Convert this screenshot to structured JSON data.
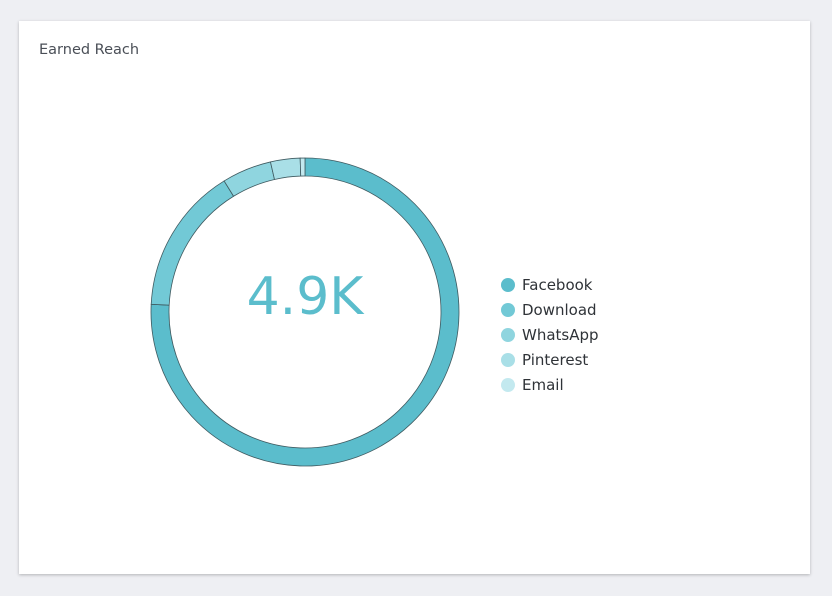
{
  "card": {
    "title": "Earned Reach"
  },
  "chart_data": {
    "type": "pie",
    "variant": "donut",
    "center_label": "4.9K",
    "legend_position": "right",
    "categories": [
      "Facebook",
      "Download",
      "WhatsApp",
      "Pinterest",
      "Email"
    ],
    "values": [
      75.8,
      15.4,
      5.2,
      3.1,
      0.5
    ],
    "colors": [
      "#5bbdcc",
      "#72c9d6",
      "#8fd5df",
      "#a9dfe7",
      "#c3e9ef"
    ]
  }
}
